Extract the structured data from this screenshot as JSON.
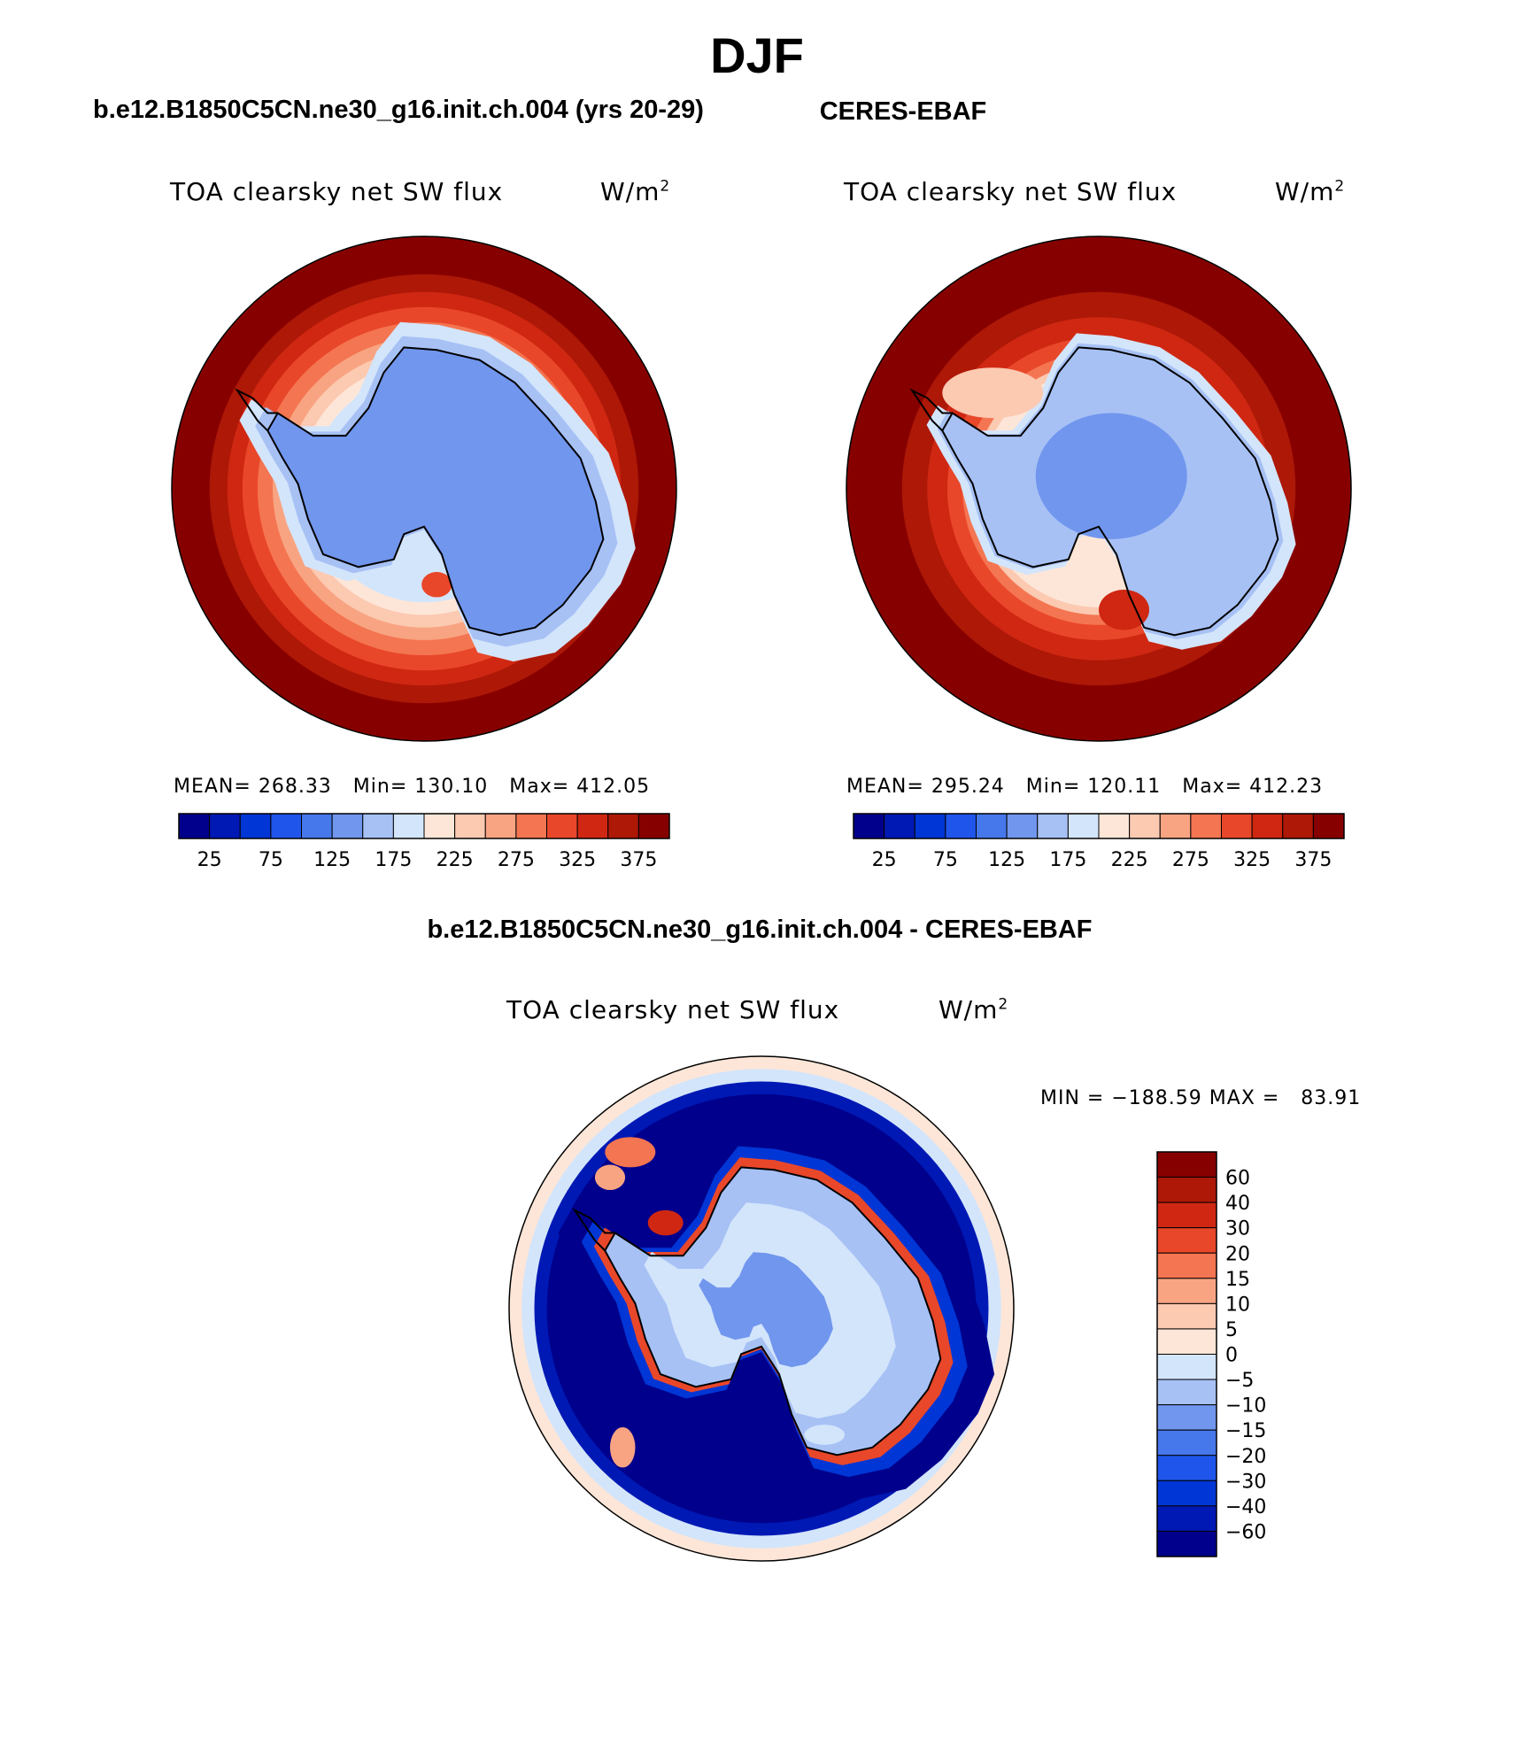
{
  "figure": {
    "season": "DJF",
    "panel_left_title": "b.e12.B1850C5CN.ne30_g16.init.ch.004 (yrs 20-29)",
    "panel_right_title": "CERES-EBAF",
    "panel_diff_title": "b.e12.B1850C5CN.ne30_g16.init.ch.004 - CERES-EBAF",
    "variable": "TOA clearsky net SW flux",
    "units": "W/m",
    "units_exp": "2"
  },
  "colors": {
    "field": [
      "#00008c",
      "#0019b4",
      "#0036d5",
      "#1f55eb",
      "#4678eb",
      "#7196ee",
      "#a7c1f5",
      "#d3e5fb",
      "#fde6d8",
      "#fcc9b1",
      "#f8a482",
      "#f47551",
      "#e9472a",
      "#cf2712",
      "#ad1807",
      "#870000"
    ],
    "diff": [
      "#00008c",
      "#0019b4",
      "#0036d5",
      "#1f55eb",
      "#4678eb",
      "#7196ee",
      "#a7c1f5",
      "#d3e5fb",
      "#fde6d8",
      "#fcc9b1",
      "#f8a482",
      "#f47551",
      "#e9472a",
      "#cf2712",
      "#ad1807",
      "#870000"
    ],
    "continent_line": "#000000"
  },
  "chart_data": [
    {
      "type": "heatmap",
      "name": "model",
      "title": "b.e12.B1850C5CN.ne30_g16.init.ch.004 (yrs 20-29)",
      "projection": "south-polar stereographic",
      "stats": {
        "mean_label": "MEAN=",
        "mean": "268.33",
        "min_label": "Min=",
        "min": "130.10",
        "max_label": "Max=",
        "max": "412.05"
      },
      "colorbar_levels": [
        25,
        50,
        75,
        100,
        125,
        150,
        175,
        200,
        225,
        250,
        275,
        300,
        325,
        350,
        375
      ],
      "colorbar_labels": [
        "25",
        "75",
        "125",
        "175",
        "225",
        "275",
        "325",
        "375"
      ],
      "colorbar_orientation": "horizontal"
    },
    {
      "type": "heatmap",
      "name": "observations",
      "title": "CERES-EBAF",
      "projection": "south-polar stereographic",
      "stats": {
        "mean_label": "MEAN=",
        "mean": "295.24",
        "min_label": "Min=",
        "min": "120.11",
        "max_label": "Max=",
        "max": "412.23"
      },
      "colorbar_levels": [
        25,
        50,
        75,
        100,
        125,
        150,
        175,
        200,
        225,
        250,
        275,
        300,
        325,
        350,
        375
      ],
      "colorbar_labels": [
        "25",
        "75",
        "125",
        "175",
        "225",
        "275",
        "325",
        "375"
      ],
      "colorbar_orientation": "horizontal"
    },
    {
      "type": "heatmap",
      "name": "difference",
      "title": "b.e12.B1850C5CN.ne30_g16.init.ch.004 - CERES-EBAF",
      "projection": "south-polar stereographic",
      "stats": {
        "min_label": "MIN =",
        "min": "−188.59",
        "max_label": "MAX =",
        "max": "83.91"
      },
      "colorbar_levels": [
        -60,
        -40,
        -30,
        -20,
        -15,
        -10,
        -5,
        0,
        5,
        10,
        15,
        20,
        30,
        40,
        60
      ],
      "colorbar_labels": [
        "60",
        "40",
        "30",
        "20",
        "15",
        "10",
        "5",
        "0",
        "−5",
        "−10",
        "−15",
        "−20",
        "−30",
        "−40",
        "−60"
      ],
      "colorbar_orientation": "vertical"
    }
  ]
}
